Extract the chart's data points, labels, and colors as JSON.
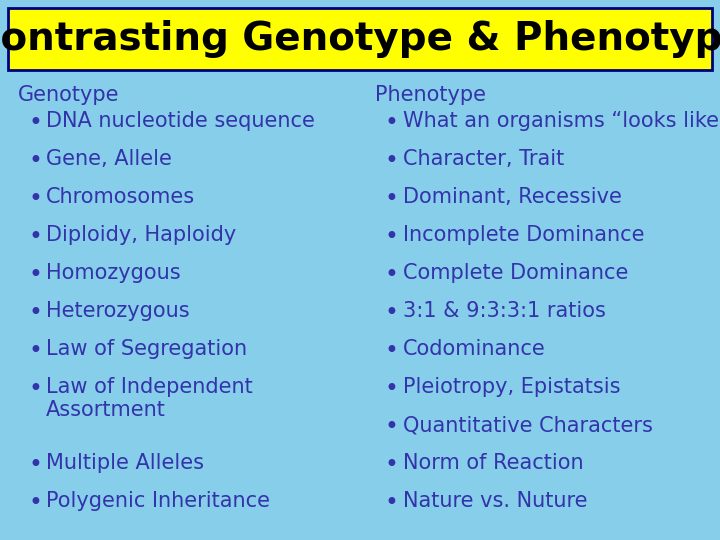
{
  "title": "Contrasting Genotype & Phenotype",
  "title_bg": "#FFFF00",
  "title_color": "#000000",
  "background_color": "#87CEEB",
  "text_color": "#3333AA",
  "title_fontsize": 28,
  "header_fontsize": 15,
  "item_fontsize": 15,
  "genotype_header": "Genotype",
  "phenotype_header": "Phenotype",
  "genotype_items": [
    "DNA nucleotide sequence",
    "Gene, Allele",
    "Chromosomes",
    "Diploidy, Haploidy",
    "Homozygous",
    "Heterozygous",
    "Law of Segregation",
    "Law of Independent\nAssortment",
    "Multiple Alleles",
    "Polygenic Inheritance"
  ],
  "phenotype_items": [
    "What an organisms “looks like”",
    "Character, Trait",
    "Dominant, Recessive",
    "Incomplete Dominance",
    "Complete Dominance",
    "3:1 & 9:3:3:1 ratios",
    "Codominance",
    "Pleiotropy, Epistatsis",
    "Quantitative Characters",
    "Norm of Reaction",
    "Nature vs. Nuture"
  ]
}
